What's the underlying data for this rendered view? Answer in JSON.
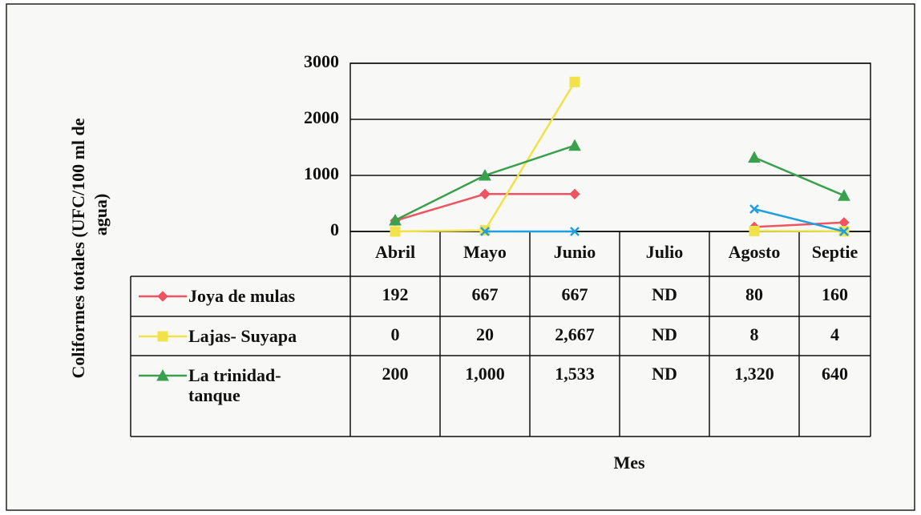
{
  "chart_data": {
    "type": "line",
    "y_label": [
      "Coliformes totales (UFC/100 ml de",
      "agua)"
    ],
    "x_label": "Mes",
    "categories": [
      "Abril",
      "Mayo",
      "Junio",
      "Julio",
      "Agosto",
      "Septie"
    ],
    "ylim": [
      0,
      3000
    ],
    "yticks": [
      0,
      1000,
      2000,
      3000
    ],
    "grid": true,
    "series": [
      {
        "name": "Joya de mulas",
        "color": "#ee5560",
        "marker": "diamond",
        "values": [
          192,
          667,
          667,
          null,
          80,
          160
        ],
        "value_labels": [
          "192",
          "667",
          "667",
          "ND",
          "80",
          "160"
        ]
      },
      {
        "name": "Lajas- Suyapa",
        "color": "#f2e24a",
        "marker": "square",
        "values": [
          0,
          20,
          2667,
          null,
          8,
          4
        ],
        "value_labels": [
          "0",
          "20",
          "2,667",
          "ND",
          "8",
          "4"
        ]
      },
      {
        "name": "La trinidad-tanque",
        "color": "#3ba04e",
        "marker": "triangle",
        "values": [
          200,
          1000,
          1533,
          null,
          1320,
          640
        ],
        "value_labels": [
          "200",
          "1,000",
          "1,533",
          "ND",
          "1,320",
          "640"
        ]
      },
      {
        "color": "#1f9ee0",
        "marker": "x",
        "values": [
          null,
          0,
          0,
          null,
          400,
          0
        ]
      }
    ]
  }
}
